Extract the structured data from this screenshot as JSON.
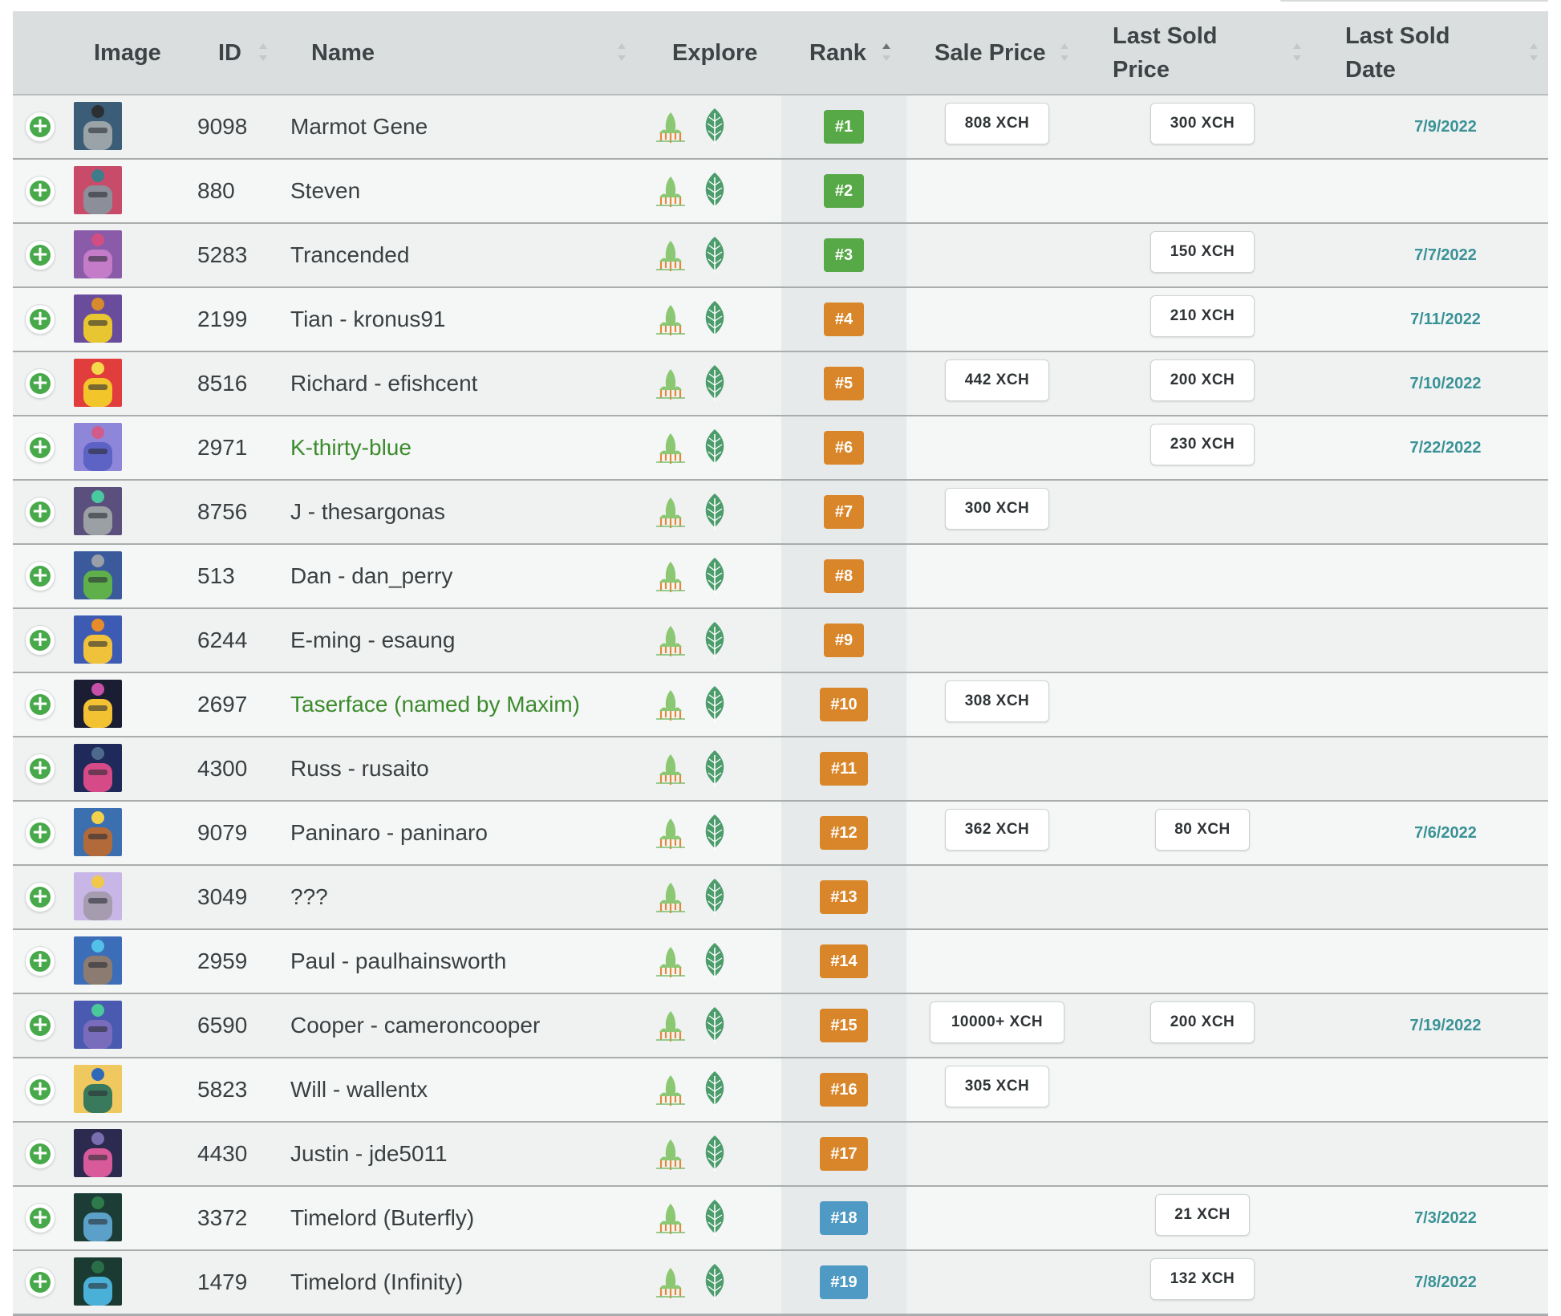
{
  "header": {
    "image": "Image",
    "id": "ID",
    "name": "Name",
    "explore": "Explore",
    "rank": "Rank",
    "sale_price": "Sale Price",
    "last_sold_price_1": "Last Sold",
    "last_sold_price_2": "Price",
    "last_sold_date_1": "Last Sold",
    "last_sold_date_2": "Date"
  },
  "colors": {
    "rank_green": "#57a846",
    "rank_orange": "#d9862a",
    "rank_blue": "#4e9ac4",
    "date_teal": "#3a9296",
    "name_link_green": "#3c8b2c"
  },
  "icons": {
    "expand": "plus-circle-icon",
    "explore_1": "rocket-sprout-icon",
    "explore_2": "leaf-icon"
  },
  "rows": [
    {
      "id": "9098",
      "name": "Marmot Gene",
      "link": false,
      "rank": "#1",
      "tier": "green",
      "sale": "808 XCH",
      "last_price": "300 XCH",
      "last_date": "7/9/2022",
      "thumb": [
        "#3b5d78",
        "#9aa4a8",
        "#2b2f33"
      ]
    },
    {
      "id": "880",
      "name": "Steven",
      "link": false,
      "rank": "#2",
      "tier": "green",
      "sale": "",
      "last_price": "",
      "last_date": "",
      "thumb": [
        "#c84c6a",
        "#8c8f99",
        "#3d7d8a"
      ]
    },
    {
      "id": "5283",
      "name": "Trancended",
      "link": false,
      "rank": "#3",
      "tier": "green",
      "sale": "",
      "last_price": "150 XCH",
      "last_date": "7/7/2022",
      "thumb": [
        "#8a5ba8",
        "#c47bc8",
        "#d14e82"
      ]
    },
    {
      "id": "2199",
      "name": "Tian - kronus91",
      "link": false,
      "rank": "#4",
      "tier": "orange",
      "sale": "",
      "last_price": "210 XCH",
      "last_date": "7/11/2022",
      "thumb": [
        "#6a4c9c",
        "#e8c631",
        "#d88a2e"
      ]
    },
    {
      "id": "8516",
      "name": "Richard - efishcent",
      "link": false,
      "rank": "#5",
      "tier": "orange",
      "sale": "442 XCH",
      "last_price": "200 XCH",
      "last_date": "7/10/2022",
      "thumb": [
        "#e23d3d",
        "#f2c52b",
        "#f6d94a"
      ]
    },
    {
      "id": "2971",
      "name": "K-thirty-blue",
      "link": true,
      "rank": "#6",
      "tier": "orange",
      "sale": "",
      "last_price": "230 XCH",
      "last_date": "7/22/2022",
      "thumb": [
        "#8e86d8",
        "#5d63c4",
        "#d15b8b"
      ]
    },
    {
      "id": "8756",
      "name": "J - thesargonas",
      "link": false,
      "rank": "#7",
      "tier": "orange",
      "sale": "300 XCH",
      "last_price": "",
      "last_date": "",
      "thumb": [
        "#5b4f7e",
        "#9aa0a3",
        "#49c9a0"
      ]
    },
    {
      "id": "513",
      "name": "Dan - dan_perry",
      "link": false,
      "rank": "#8",
      "tier": "orange",
      "sale": "",
      "last_price": "",
      "last_date": "",
      "thumb": [
        "#3a5a9c",
        "#5fb04a",
        "#9aa0a8"
      ]
    },
    {
      "id": "6244",
      "name": "E-ming - esaung",
      "link": false,
      "rank": "#9",
      "tier": "orange",
      "sale": "",
      "last_price": "",
      "last_date": "",
      "thumb": [
        "#3e5bb4",
        "#f0c13a",
        "#e88c2b"
      ]
    },
    {
      "id": "2697",
      "name": "Taserface (named by Maxim)",
      "link": true,
      "rank": "#10",
      "tier": "orange",
      "sale": "308 XCH",
      "last_price": "",
      "last_date": "",
      "thumb": [
        "#1b1d33",
        "#f2c232",
        "#c64fa8"
      ]
    },
    {
      "id": "4300",
      "name": "Russ - rusaito",
      "link": false,
      "rank": "#11",
      "tier": "orange",
      "sale": "",
      "last_price": "",
      "last_date": "",
      "thumb": [
        "#1f2a5a",
        "#d64a88",
        "#4d6a8c"
      ]
    },
    {
      "id": "9079",
      "name": "Paninaro - paninaro",
      "link": false,
      "rank": "#12",
      "tier": "orange",
      "sale": "362 XCH",
      "last_price": "80 XCH",
      "last_date": "7/6/2022",
      "thumb": [
        "#3b6fb0",
        "#b36a3a",
        "#f2d24a"
      ]
    },
    {
      "id": "3049",
      "name": "???",
      "link": false,
      "rank": "#13",
      "tier": "orange",
      "sale": "",
      "last_price": "",
      "last_date": "",
      "thumb": [
        "#c8b6e6",
        "#a59cb0",
        "#f0c94a"
      ]
    },
    {
      "id": "2959",
      "name": "Paul - paulhainsworth",
      "link": false,
      "rank": "#14",
      "tier": "orange",
      "sale": "",
      "last_price": "",
      "last_date": "",
      "thumb": [
        "#3c6db8",
        "#8c7b70",
        "#53c0e8"
      ]
    },
    {
      "id": "6590",
      "name": "Cooper - cameroncooper",
      "link": false,
      "rank": "#15",
      "tier": "orange",
      "sale": "10000+ XCH",
      "last_price": "200 XCH",
      "last_date": "7/19/2022",
      "thumb": [
        "#4a5ab0",
        "#7a6cbc",
        "#4ac99a"
      ]
    },
    {
      "id": "5823",
      "name": "Will - wallentx",
      "link": false,
      "rank": "#16",
      "tier": "orange",
      "sale": "305 XCH",
      "last_price": "",
      "last_date": "",
      "thumb": [
        "#f0c860",
        "#3a7a5c",
        "#2f6ab8"
      ]
    },
    {
      "id": "4430",
      "name": "Justin - jde5011",
      "link": false,
      "rank": "#17",
      "tier": "orange",
      "sale": "",
      "last_price": "",
      "last_date": "",
      "thumb": [
        "#2c2a4e",
        "#d85a9a",
        "#7a6db0"
      ]
    },
    {
      "id": "3372",
      "name": "Timelord (Buterfly)",
      "link": false,
      "rank": "#18",
      "tier": "blue",
      "sale": "",
      "last_price": "21 XCH",
      "last_date": "7/3/2022",
      "thumb": [
        "#1c3c36",
        "#5aa0c8",
        "#2e7a4a"
      ]
    },
    {
      "id": "1479",
      "name": "Timelord (Infinity)",
      "link": false,
      "rank": "#19",
      "tier": "blue",
      "sale": "",
      "last_price": "132 XCH",
      "last_date": "7/8/2022",
      "thumb": [
        "#1a3a32",
        "#4bb0d8",
        "#2a6e48"
      ]
    }
  ]
}
